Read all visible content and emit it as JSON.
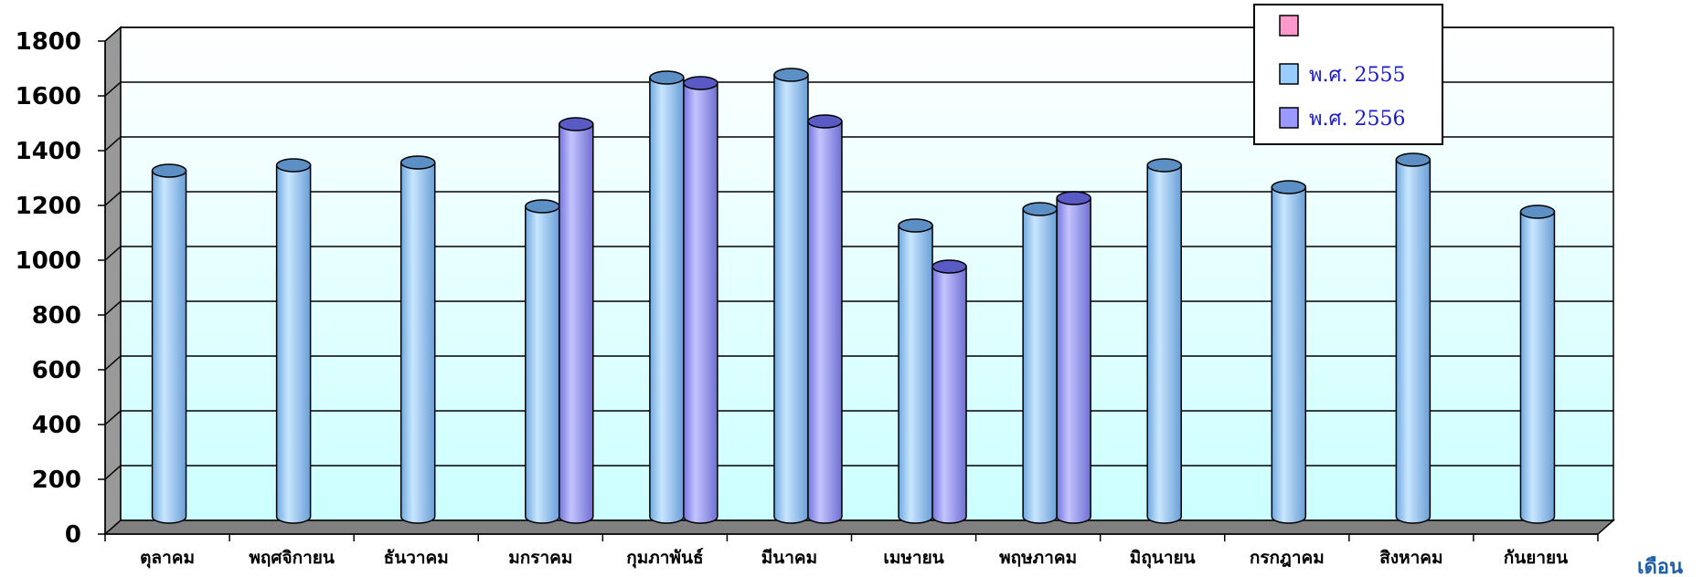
{
  "chart_data": {
    "type": "bar",
    "title": "",
    "xlabel": "เดือน",
    "ylabel": "",
    "ylim": [
      0,
      1800
    ],
    "yticks": [
      0,
      200,
      400,
      600,
      800,
      1000,
      1200,
      1400,
      1600,
      1800
    ],
    "grid": true,
    "legend_position": "top-right",
    "categories": [
      "ตุลาคม",
      "พฤศจิกายน",
      "ธันวาคม",
      "มกราคม",
      "กุมภาพันธ์",
      "มีนาคม",
      "เมษายน",
      "พฤษภาคม",
      "มิถุนายน",
      "กรกฎาคม",
      "สิงหาคม",
      "กันยายน"
    ],
    "series": [
      {
        "name": "",
        "color": "#ff99cc",
        "values": [
          null,
          null,
          null,
          null,
          null,
          null,
          null,
          null,
          null,
          null,
          null,
          null
        ]
      },
      {
        "name": "พ.ศ. 2555",
        "color": "#99ccff",
        "values": [
          1310,
          1330,
          1340,
          1180,
          1650,
          1660,
          1110,
          1170,
          1330,
          1250,
          1350,
          1160
        ]
      },
      {
        "name": "พ.ศ. 2556",
        "color": "#9999ff",
        "values": [
          null,
          null,
          null,
          1480,
          1630,
          1490,
          960,
          1210,
          null,
          null,
          null,
          null
        ]
      }
    ]
  }
}
